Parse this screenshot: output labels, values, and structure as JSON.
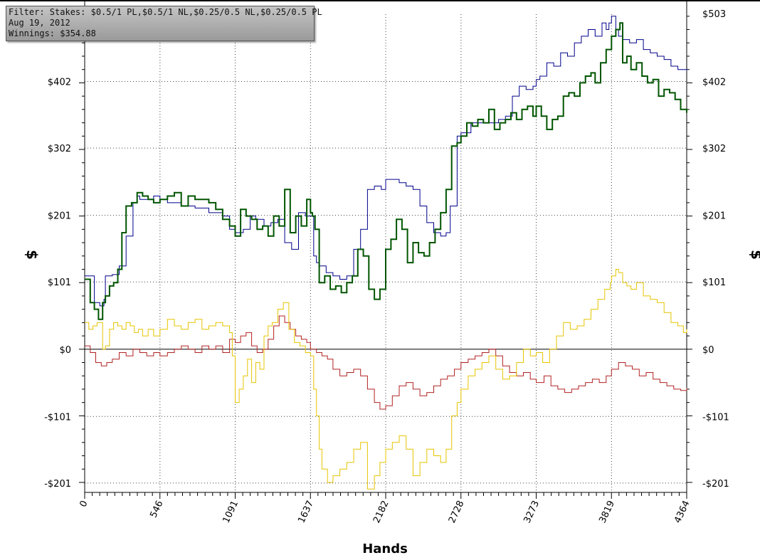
{
  "info_box": {
    "filter": "Filter: Stakes: $0.5/1 PL,$0.5/1 NL,$0.25/0.5 NL,$0.25/0.5 PL",
    "date": "Aug 19, 2012",
    "winnings": "Winnings: $354.88"
  },
  "colors": {
    "total_winnings": "#005500",
    "allin_ev": "#00008b",
    "showdown": "#b22222",
    "non_showdown": "#e6c400",
    "zero_line": "#000000",
    "grid": "#444444"
  },
  "chart_data": {
    "type": "line",
    "xlabel": "Hands",
    "ylabel": "$",
    "xlim": [
      0,
      4364
    ],
    "ylim": [
      -215,
      503
    ],
    "x_ticks": [
      0,
      546,
      1091,
      1637,
      2182,
      2728,
      3273,
      3819,
      4364
    ],
    "y_ticks": [
      {
        "value": -201,
        "label": "-$201"
      },
      {
        "value": -101,
        "label": "-$101"
      },
      {
        "value": 0,
        "label": "$0"
      },
      {
        "value": 101,
        "label": "$101"
      },
      {
        "value": 201,
        "label": "$201"
      },
      {
        "value": 302,
        "label": "$302"
      },
      {
        "value": 402,
        "label": "$402"
      }
    ],
    "top_right_label": "$503",
    "grid": true,
    "series": [
      {
        "key": "allin_ev",
        "x": [
          0,
          70,
          110,
          140,
          150,
          200,
          250,
          300,
          350,
          380,
          400,
          440,
          470,
          500,
          546,
          600,
          700,
          800,
          900,
          1000,
          1050,
          1091,
          1150,
          1200,
          1240,
          1300,
          1350,
          1400,
          1450,
          1500,
          1550,
          1600,
          1637,
          1660,
          1680,
          1700,
          1750,
          1800,
          1850,
          1900,
          1950,
          2000,
          2050,
          2100,
          2150,
          2182,
          2230,
          2280,
          2330,
          2380,
          2430,
          2480,
          2530,
          2580,
          2620,
          2650,
          2700,
          2728,
          2800,
          2900,
          3000,
          3050,
          3100,
          3150,
          3200,
          3250,
          3273,
          3300,
          3350,
          3400,
          3450,
          3500,
          3550,
          3600,
          3650,
          3700,
          3750,
          3780,
          3800,
          3819,
          3850,
          3870,
          3900,
          3950,
          4000,
          4050,
          4100,
          4150,
          4200,
          4250,
          4300,
          4364
        ],
        "y": [
          110,
          70,
          65,
          75,
          110,
          112,
          125,
          170,
          220,
          230,
          225,
          225,
          225,
          230,
          225,
          220,
          215,
          212,
          205,
          200,
          180,
          175,
          180,
          200,
          195,
          185,
          190,
          195,
          160,
          150,
          205,
          200,
          200,
          140,
          130,
          125,
          115,
          110,
          105,
          110,
          150,
          180,
          240,
          245,
          240,
          255,
          255,
          250,
          245,
          240,
          215,
          190,
          175,
          170,
          175,
          215,
          320,
          325,
          340,
          340,
          345,
          350,
          380,
          395,
          390,
          395,
          405,
          410,
          430,
          425,
          445,
          440,
          460,
          470,
          480,
          470,
          490,
          480,
          490,
          500,
          480,
          470,
          465,
          460,
          465,
          450,
          445,
          440,
          435,
          425,
          420,
          418
        ]
      },
      {
        "key": "total_winnings",
        "x": [
          0,
          40,
          70,
          100,
          130,
          150,
          180,
          210,
          240,
          270,
          300,
          340,
          380,
          420,
          460,
          500,
          546,
          600,
          650,
          700,
          750,
          800,
          850,
          900,
          950,
          1000,
          1050,
          1091,
          1130,
          1170,
          1210,
          1250,
          1290,
          1330,
          1370,
          1410,
          1450,
          1490,
          1530,
          1570,
          1610,
          1637,
          1650,
          1670,
          1700,
          1740,
          1780,
          1820,
          1860,
          1900,
          1940,
          1980,
          2020,
          2060,
          2100,
          2140,
          2182,
          2220,
          2260,
          2300,
          2340,
          2380,
          2420,
          2460,
          2500,
          2540,
          2580,
          2620,
          2660,
          2700,
          2728,
          2770,
          2810,
          2850,
          2890,
          2930,
          2970,
          3010,
          3050,
          3090,
          3130,
          3170,
          3210,
          3250,
          3273,
          3310,
          3350,
          3390,
          3430,
          3470,
          3510,
          3550,
          3590,
          3630,
          3670,
          3700,
          3740,
          3780,
          3819,
          3850,
          3880,
          3900,
          3930,
          3960,
          4000,
          4040,
          4080,
          4120,
          4160,
          4200,
          4240,
          4280,
          4320,
          4364
        ],
        "y": [
          105,
          70,
          60,
          45,
          70,
          80,
          95,
          100,
          120,
          175,
          215,
          220,
          235,
          230,
          225,
          220,
          225,
          230,
          235,
          215,
          230,
          225,
          225,
          220,
          210,
          195,
          185,
          170,
          210,
          200,
          195,
          180,
          185,
          170,
          200,
          185,
          240,
          175,
          200,
          185,
          225,
          205,
          200,
          180,
          100,
          110,
          90,
          95,
          85,
          100,
          110,
          150,
          140,
          90,
          75,
          90,
          150,
          165,
          195,
          180,
          130,
          160,
          145,
          140,
          160,
          180,
          205,
          240,
          305,
          310,
          320,
          340,
          335,
          345,
          340,
          360,
          330,
          340,
          345,
          355,
          345,
          360,
          365,
          350,
          365,
          350,
          330,
          345,
          350,
          380,
          385,
          380,
          400,
          410,
          415,
          400,
          430,
          450,
          470,
          480,
          490,
          430,
          440,
          420,
          430,
          410,
          400,
          405,
          380,
          390,
          385,
          375,
          360,
          355
        ]
      },
      {
        "key": "showdown",
        "x": [
          0,
          40,
          80,
          120,
          160,
          200,
          250,
          300,
          350,
          400,
          450,
          500,
          546,
          600,
          650,
          700,
          750,
          800,
          850,
          900,
          950,
          1000,
          1050,
          1091,
          1130,
          1170,
          1210,
          1250,
          1290,
          1330,
          1370,
          1410,
          1450,
          1490,
          1530,
          1570,
          1610,
          1637,
          1680,
          1720,
          1760,
          1800,
          1850,
          1900,
          1950,
          2000,
          2050,
          2100,
          2140,
          2182,
          2230,
          2280,
          2330,
          2380,
          2430,
          2480,
          2530,
          2580,
          2630,
          2680,
          2728,
          2780,
          2830,
          2880,
          2930,
          2980,
          3030,
          3080,
          3130,
          3180,
          3230,
          3273,
          3330,
          3380,
          3430,
          3480,
          3530,
          3580,
          3630,
          3680,
          3730,
          3780,
          3819,
          3870,
          3920,
          3970,
          4020,
          4070,
          4120,
          4170,
          4220,
          4270,
          4320,
          4364
        ],
        "y": [
          5,
          -5,
          -20,
          -25,
          -20,
          -15,
          -5,
          -10,
          0,
          -5,
          -10,
          -5,
          -10,
          -5,
          0,
          5,
          0,
          -5,
          5,
          0,
          5,
          -5,
          15,
          10,
          20,
          25,
          5,
          -5,
          0,
          15,
          35,
          50,
          40,
          30,
          20,
          15,
          10,
          0,
          -5,
          -10,
          -15,
          -30,
          -40,
          -35,
          -30,
          -40,
          -60,
          -80,
          -90,
          -85,
          -70,
          -55,
          -50,
          -60,
          -70,
          -65,
          -55,
          -45,
          -40,
          -30,
          -20,
          -15,
          -10,
          -5,
          0,
          -10,
          -25,
          -35,
          -40,
          -35,
          -45,
          -50,
          -40,
          -55,
          -60,
          -65,
          -60,
          -55,
          -50,
          -45,
          -50,
          -40,
          -30,
          -20,
          -25,
          -30,
          -40,
          -35,
          -45,
          -50,
          -55,
          -60,
          -62,
          -58
        ]
      },
      {
        "key": "non_showdown",
        "x": [
          0,
          30,
          60,
          90,
          130,
          150,
          180,
          210,
          240,
          270,
          300,
          330,
          360,
          390,
          420,
          460,
          500,
          546,
          600,
          650,
          700,
          750,
          800,
          850,
          900,
          950,
          1000,
          1050,
          1070,
          1091,
          1120,
          1150,
          1180,
          1210,
          1240,
          1270,
          1300,
          1330,
          1360,
          1400,
          1440,
          1480,
          1520,
          1560,
          1600,
          1637,
          1660,
          1680,
          1700,
          1720,
          1760,
          1800,
          1850,
          1900,
          1950,
          2000,
          2050,
          2100,
          2140,
          2182,
          2230,
          2280,
          2330,
          2380,
          2430,
          2480,
          2530,
          2580,
          2620,
          2660,
          2700,
          2728,
          2780,
          2830,
          2880,
          2930,
          2980,
          3030,
          3080,
          3130,
          3180,
          3230,
          3273,
          3320,
          3370,
          3420,
          3470,
          3520,
          3570,
          3620,
          3670,
          3720,
          3770,
          3810,
          3819,
          3850,
          3870,
          3900,
          3930,
          3960,
          4000,
          4050,
          4100,
          4150,
          4200,
          4250,
          4300,
          4340,
          4364
        ],
        "y": [
          40,
          30,
          35,
          40,
          0,
          5,
          30,
          40,
          35,
          30,
          40,
          35,
          25,
          30,
          20,
          30,
          20,
          30,
          45,
          35,
          30,
          40,
          45,
          30,
          35,
          40,
          35,
          25,
          -10,
          -80,
          -60,
          -40,
          -15,
          -50,
          -20,
          -30,
          20,
          35,
          40,
          60,
          70,
          30,
          10,
          5,
          -5,
          -10,
          -60,
          -100,
          -150,
          -180,
          -200,
          -190,
          -180,
          -170,
          -150,
          -140,
          -210,
          -190,
          -170,
          -150,
          -140,
          -130,
          -150,
          -190,
          -170,
          -150,
          -160,
          -170,
          -150,
          -100,
          -80,
          -60,
          -40,
          -30,
          -20,
          -10,
          -30,
          -45,
          -40,
          -20,
          0,
          -10,
          -5,
          -20,
          0,
          20,
          40,
          30,
          35,
          45,
          60,
          75,
          90,
          100,
          110,
          120,
          115,
          100,
          95,
          90,
          100,
          80,
          75,
          70,
          55,
          40,
          35,
          25,
          30
        ]
      }
    ]
  }
}
